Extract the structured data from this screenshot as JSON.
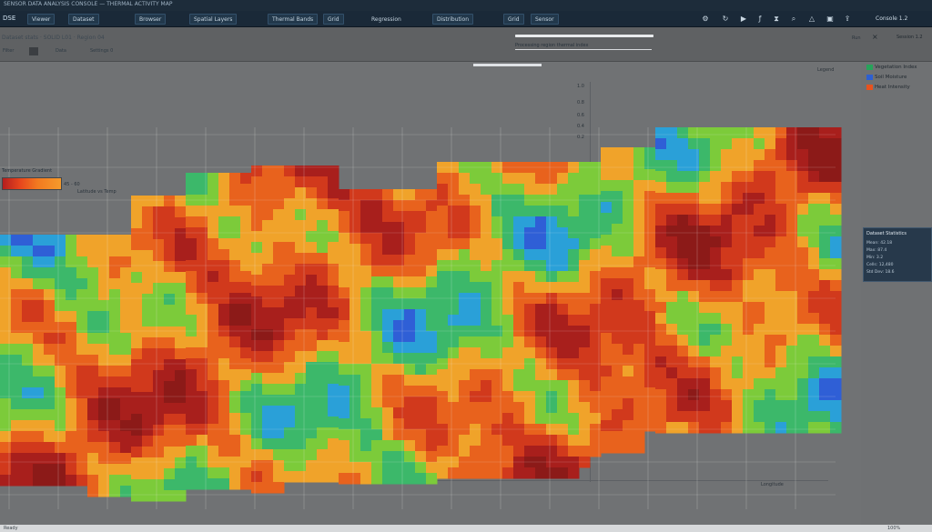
{
  "window": {
    "title": "SENSOR DATA ANALYSIS CONSOLE — THERMAL ACTIVITY MAP"
  },
  "menubar": {
    "brand": "DSE",
    "tabs": [
      {
        "label": "Viewer"
      },
      {
        "label": "Dataset"
      },
      {
        "label": "Browser"
      },
      {
        "label": "Spatial Layers"
      },
      {
        "label": "Thermal Bands"
      },
      {
        "label": "Grid"
      },
      {
        "label": "Regression"
      },
      {
        "label": "Distribution"
      },
      {
        "label": "Grid"
      },
      {
        "label": "Sensor"
      }
    ],
    "tools": [
      {
        "icon": "gear-icon",
        "glyph": "⚙"
      },
      {
        "icon": "refresh-icon",
        "glyph": "↻"
      },
      {
        "icon": "play-icon",
        "glyph": "▶"
      },
      {
        "icon": "function-icon",
        "glyph": "ƒ"
      },
      {
        "icon": "timer-icon",
        "glyph": "⧗"
      },
      {
        "icon": "search-icon",
        "glyph": "⌕"
      },
      {
        "icon": "alert-icon",
        "glyph": "△"
      },
      {
        "icon": "camera-icon",
        "glyph": "▣"
      },
      {
        "icon": "export-icon",
        "glyph": "⇪"
      }
    ],
    "right_label": "Console 1.2"
  },
  "toolbar": {
    "row1": "Dataset stats · SOLID L01 · Region 04",
    "buttons": [
      {
        "label": "Filter"
      },
      {
        "label": ""
      },
      {
        "label": "Data"
      },
      {
        "label": "Settings 0"
      }
    ],
    "progress": 1.0,
    "status_line": "Processing region thermal index",
    "far_left": "Run",
    "close": "×",
    "right_text": "Session 1.2"
  },
  "axes": {
    "y_ticks": [
      "1.0",
      "0.8",
      "0.6",
      "0.4",
      "0.2"
    ],
    "x_label": "Longitude"
  },
  "colorbar": {
    "title": "Temperature Gradient",
    "caption": "45 - 60",
    "map_label": "Latitude vs Temp"
  },
  "legend": {
    "header": "Legend",
    "items": [
      {
        "label": "Vegetation Index",
        "color": "#27a35a"
      },
      {
        "label": "Soil Moisture",
        "color": "#2d5fd1"
      },
      {
        "label": "Heat Intensity",
        "color": "#e8521d"
      }
    ]
  },
  "info_panel": {
    "title": "Dataset Statistics",
    "lines": [
      "Mean: 42.18",
      "Max: 87.4",
      "Min: 3.2",
      "Cells: 12,480",
      "Std Dev: 18.6"
    ]
  },
  "statusbar": {
    "left": "Ready",
    "right": "100%"
  }
}
